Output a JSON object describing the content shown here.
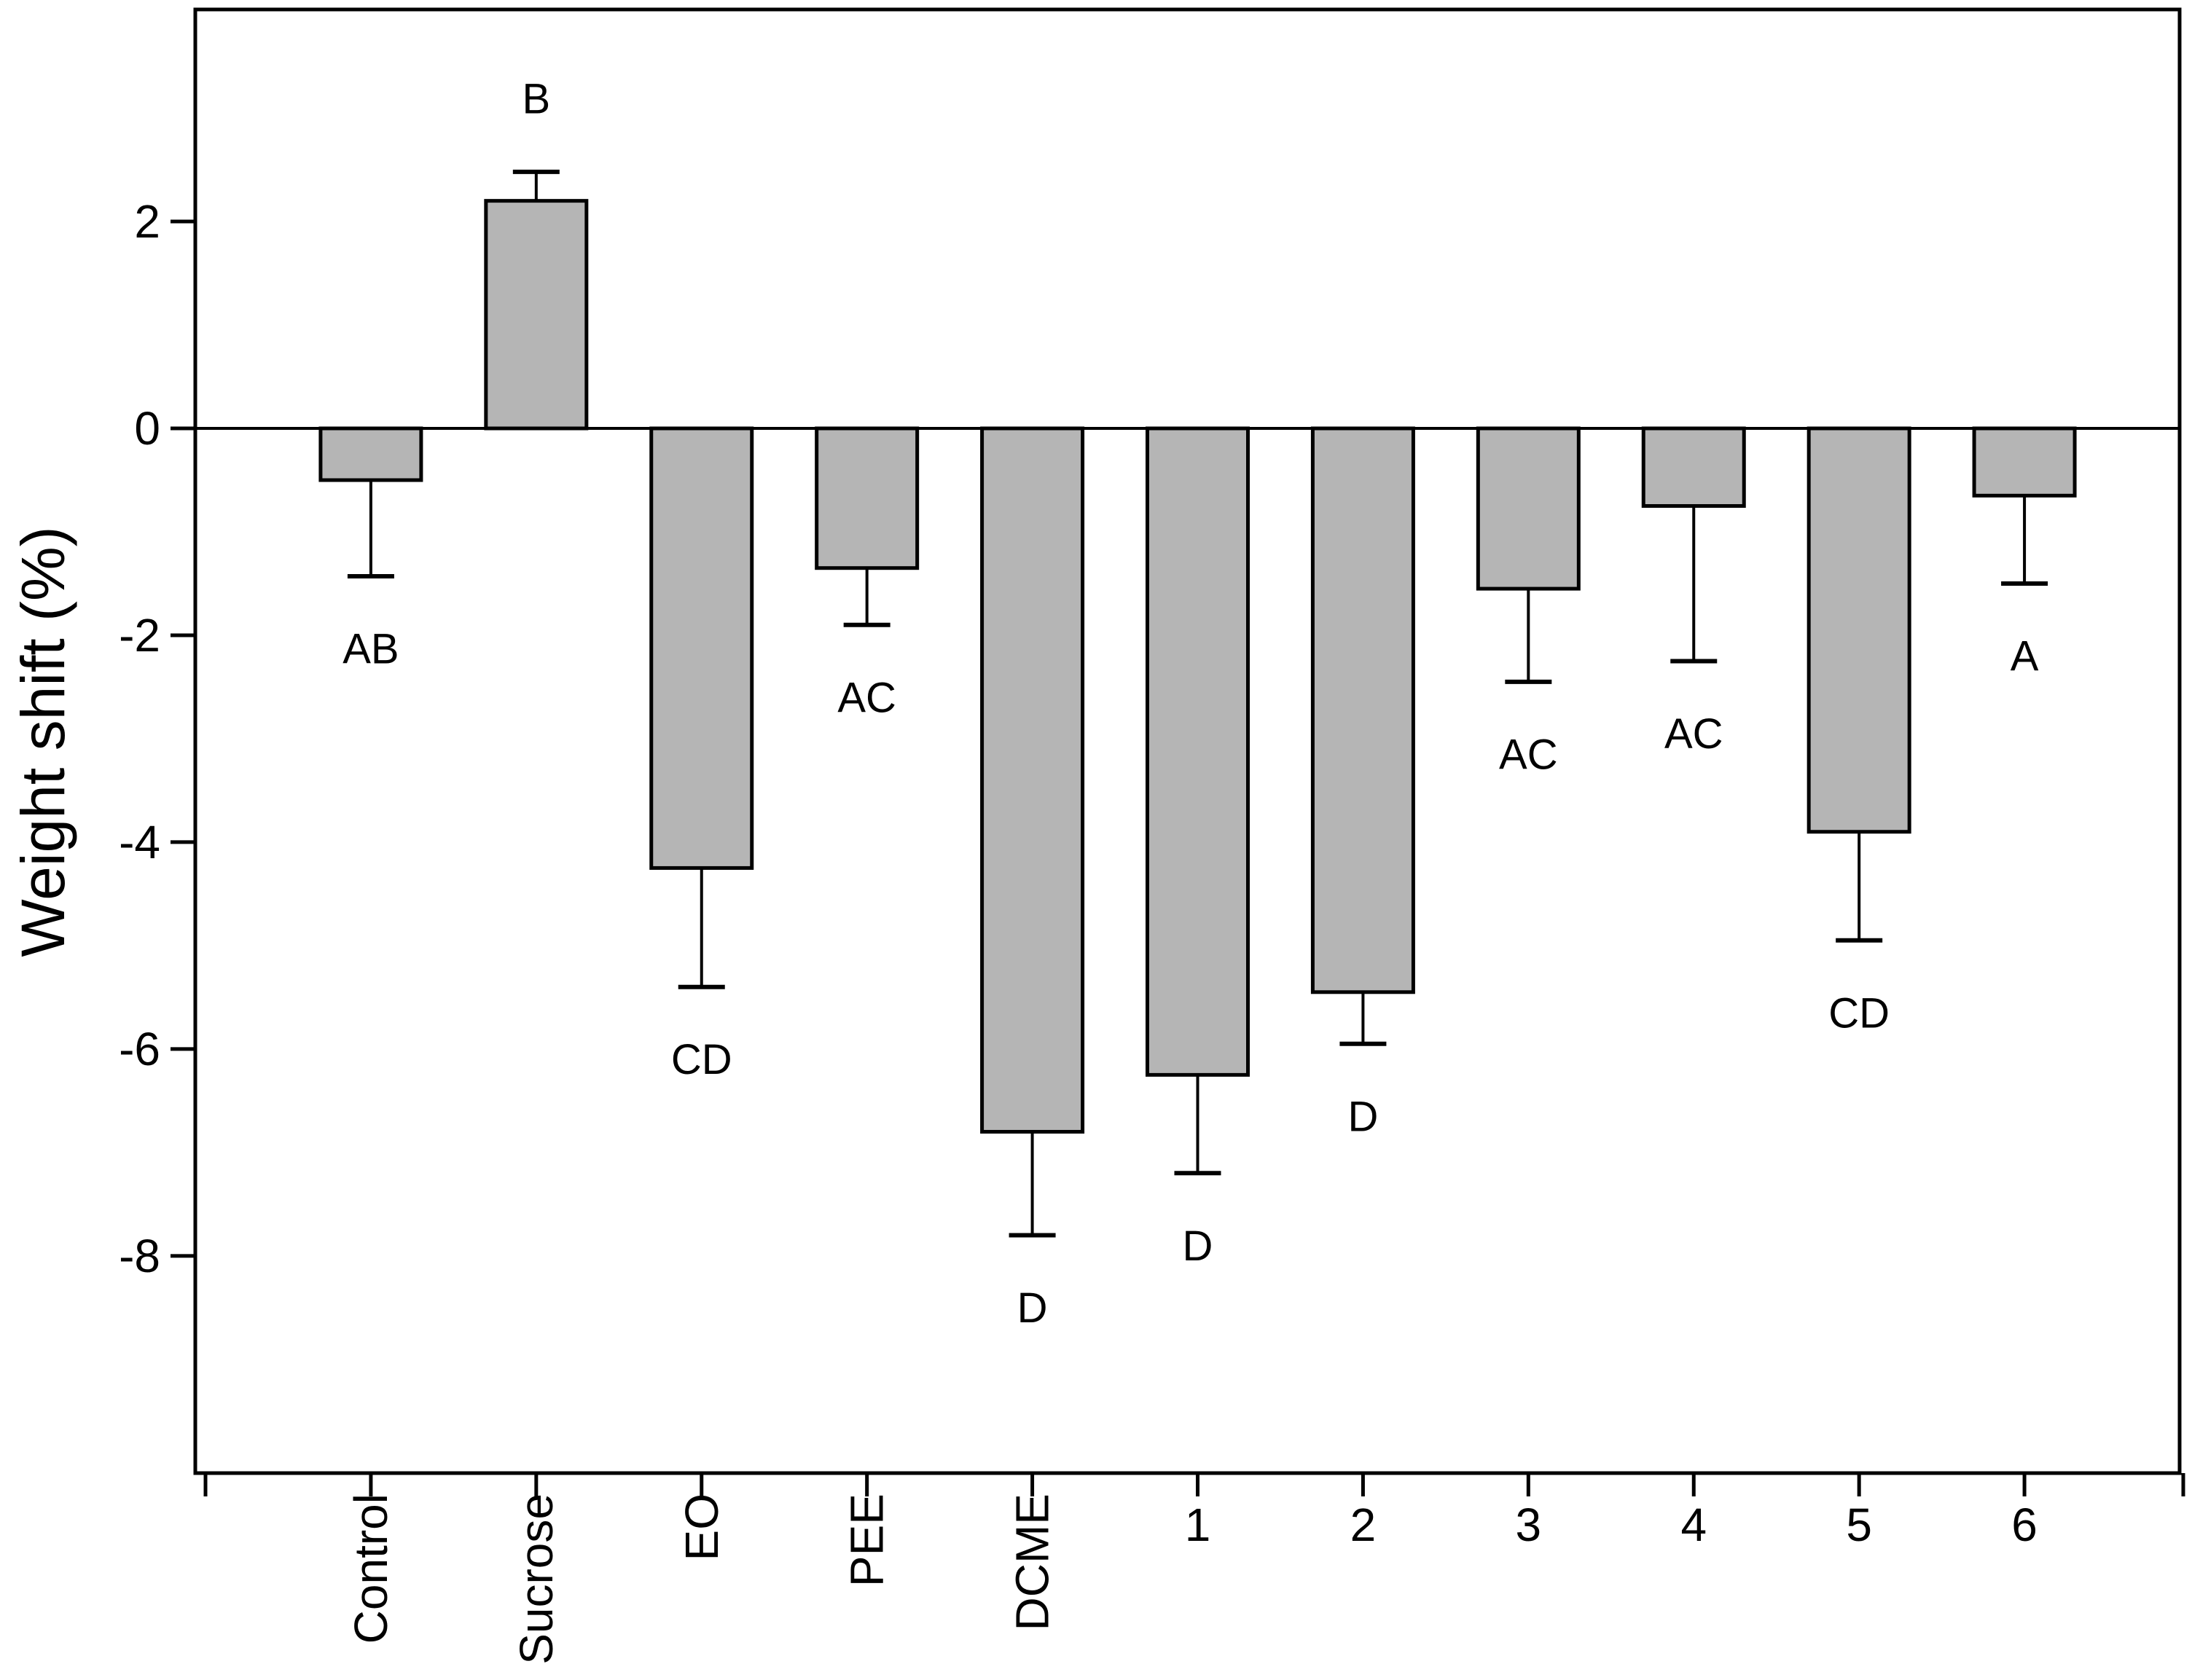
{
  "figure": {
    "background_color": "#ffffff",
    "axis_color": "#000000"
  },
  "chart_data": {
    "type": "bar",
    "title": "",
    "xlabel": "",
    "ylabel": "Weight shift (%)",
    "categories": [
      "Control",
      "Sucrose",
      "EO",
      "PEE",
      "DCME",
      "1",
      "2",
      "3",
      "4",
      "5",
      "6"
    ],
    "values": [
      -0.5,
      2.2,
      -4.25,
      -1.35,
      -6.8,
      -6.25,
      -5.45,
      -1.55,
      -0.75,
      -3.9,
      -0.65
    ],
    "errors": [
      0.93,
      0.28,
      1.15,
      0.55,
      1.0,
      0.95,
      0.5,
      0.9,
      1.5,
      1.05,
      0.85
    ],
    "sig_labels": [
      "AB",
      "B",
      "CD",
      "AC",
      "D",
      "D",
      "D",
      "AC",
      "AC",
      "CD",
      "A"
    ],
    "yticks": [
      2,
      0,
      -2,
      -4,
      -6,
      -8
    ],
    "ylim": [
      -10.1,
      4.05
    ],
    "grid": false,
    "legend_position": "none",
    "bar_color": "#b5b5b5",
    "bar_edge_color": "#000000",
    "error_bar_color": "#000000",
    "background_color": "#ffffff"
  }
}
